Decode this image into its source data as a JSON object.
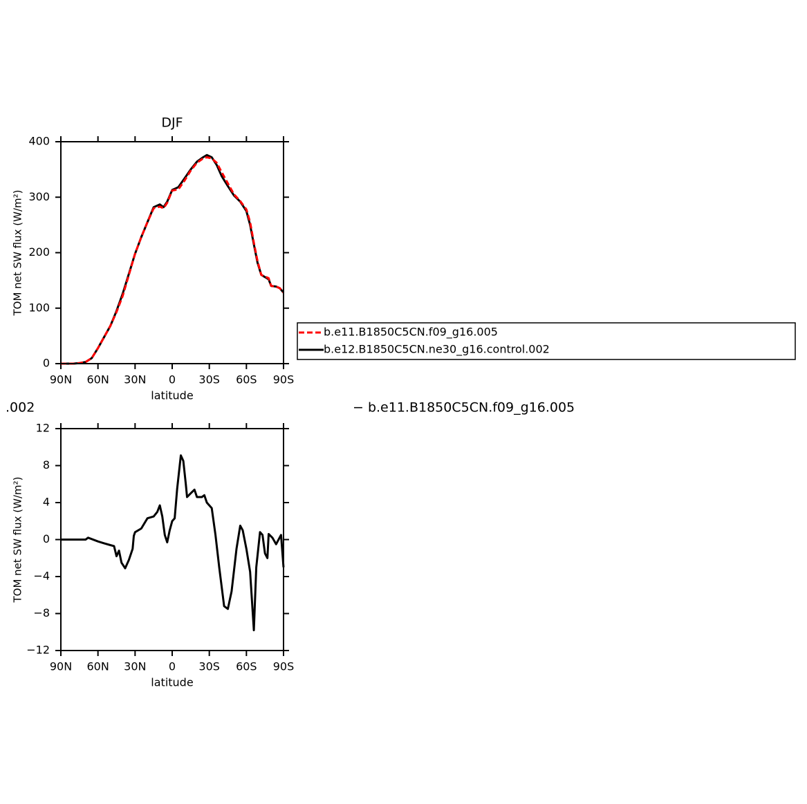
{
  "chart_data": [
    {
      "type": "line",
      "title": "DJF",
      "xlabel": "latitude",
      "ylabel": "TOM net SW flux (W/m²)",
      "x": [
        90,
        85,
        80,
        75,
        70,
        65,
        60,
        55,
        50,
        45,
        40,
        35,
        30,
        25,
        20,
        15,
        10,
        7,
        4,
        0,
        -5,
        -10,
        -15,
        -20,
        -25,
        -28,
        -32,
        -36,
        -40,
        -45,
        -50,
        -55,
        -60,
        -63,
        -66,
        -69,
        -72,
        -75,
        -78,
        -80,
        -84,
        -87,
        -90
      ],
      "series": [
        {
          "name": "b.e11.B1850C5CN.f09_g16.005",
          "color": "#ff0000",
          "dash": true,
          "values": [
            0,
            0,
            0,
            1,
            3,
            10,
            28,
            48,
            68,
            93,
            122,
            160,
            198,
            228,
            255,
            280,
            283,
            280,
            290,
            312,
            314,
            330,
            348,
            362,
            370,
            372,
            370,
            362,
            345,
            325,
            305,
            293,
            278,
            255,
            218,
            185,
            160,
            157,
            154,
            140,
            139,
            136,
            128
          ]
        },
        {
          "name": "b.e12.B1850C5CN.ne30_g16.control.002",
          "color": "#000000",
          "dash": false,
          "values": [
            0,
            0,
            0,
            1,
            3,
            10,
            28,
            48,
            68,
            95,
            126,
            162,
            198,
            228,
            255,
            282,
            287,
            282,
            292,
            313,
            318,
            334,
            350,
            364,
            372,
            376,
            372,
            358,
            338,
            320,
            303,
            292,
            275,
            250,
            215,
            182,
            160,
            156,
            152,
            140,
            139,
            136,
            128
          ]
        }
      ],
      "xlim": [
        90,
        -90
      ],
      "xticks": [
        {
          "value": 90,
          "label": "90N"
        },
        {
          "value": 60,
          "label": "60N"
        },
        {
          "value": 30,
          "label": "30N"
        },
        0,
        {
          "value": -30,
          "label": "30S"
        },
        {
          "value": -60,
          "label": "60S"
        },
        {
          "value": -90,
          "label": "90S"
        }
      ],
      "ylim": [
        0,
        400
      ],
      "yticks": [
        0,
        100,
        200,
        300,
        400
      ],
      "legend": "outside-right"
    },
    {
      "type": "line",
      "xlabel": "latitude",
      "ylabel": "TOM net SW flux (W/m²)",
      "color": "#000000",
      "x": [
        90,
        80,
        70,
        68,
        60,
        55,
        50,
        47,
        45,
        43,
        41,
        38,
        35,
        32,
        31,
        30,
        25,
        20,
        15,
        12,
        10,
        8,
        6,
        4,
        2,
        0,
        -2,
        -4,
        -7,
        -9,
        -11,
        -12,
        -15,
        -18,
        -20,
        -24,
        -26,
        -28,
        -32,
        -35,
        -38,
        -42,
        -45,
        -48,
        -52,
        -55,
        -57,
        -60,
        -63,
        -66,
        -68,
        -71,
        -73,
        -75,
        -77,
        -78,
        -81,
        -84,
        -88,
        -90
      ],
      "values": [
        0,
        0,
        0,
        0.2,
        -0.2,
        -0.4,
        -0.6,
        -0.7,
        -1.8,
        -1.2,
        -2.5,
        -3.1,
        -2.2,
        -1.0,
        0.4,
        0.8,
        1.2,
        2.3,
        2.5,
        3.0,
        3.7,
        2.5,
        0.5,
        -0.3,
        1.0,
        2.0,
        2.3,
        5.5,
        9.1,
        8.5,
        6.0,
        4.6,
        5.0,
        5.4,
        4.6,
        4.6,
        4.8,
        4.0,
        3.4,
        0.5,
        -3,
        -7.2,
        -7.5,
        -5.6,
        -1,
        1.5,
        1.0,
        -1,
        -3.5,
        -9.8,
        -3,
        0.8,
        0.5,
        -1.5,
        -2,
        0.6,
        0.2,
        -0.5,
        0.5,
        -3
      ],
      "xlim": [
        90,
        -90
      ],
      "xticks": [
        {
          "value": 90,
          "label": "90N"
        },
        {
          "value": 60,
          "label": "60N"
        },
        {
          "value": 30,
          "label": "30N"
        },
        0,
        {
          "value": -30,
          "label": "30S"
        },
        {
          "value": -60,
          "label": "60S"
        },
        {
          "value": -90,
          "label": "90S"
        }
      ],
      "ylim": [
        -12,
        12
      ],
      "yticks": [
        {
          "value": -12,
          "label": "−12"
        },
        {
          "value": -8,
          "label": "−8"
        },
        {
          "value": -4,
          "label": "−4"
        },
        0,
        4,
        8,
        12
      ]
    }
  ],
  "overlay_texts": [
    ".002",
    "− b.e11.B1850C5CN.f09_g16.005"
  ]
}
